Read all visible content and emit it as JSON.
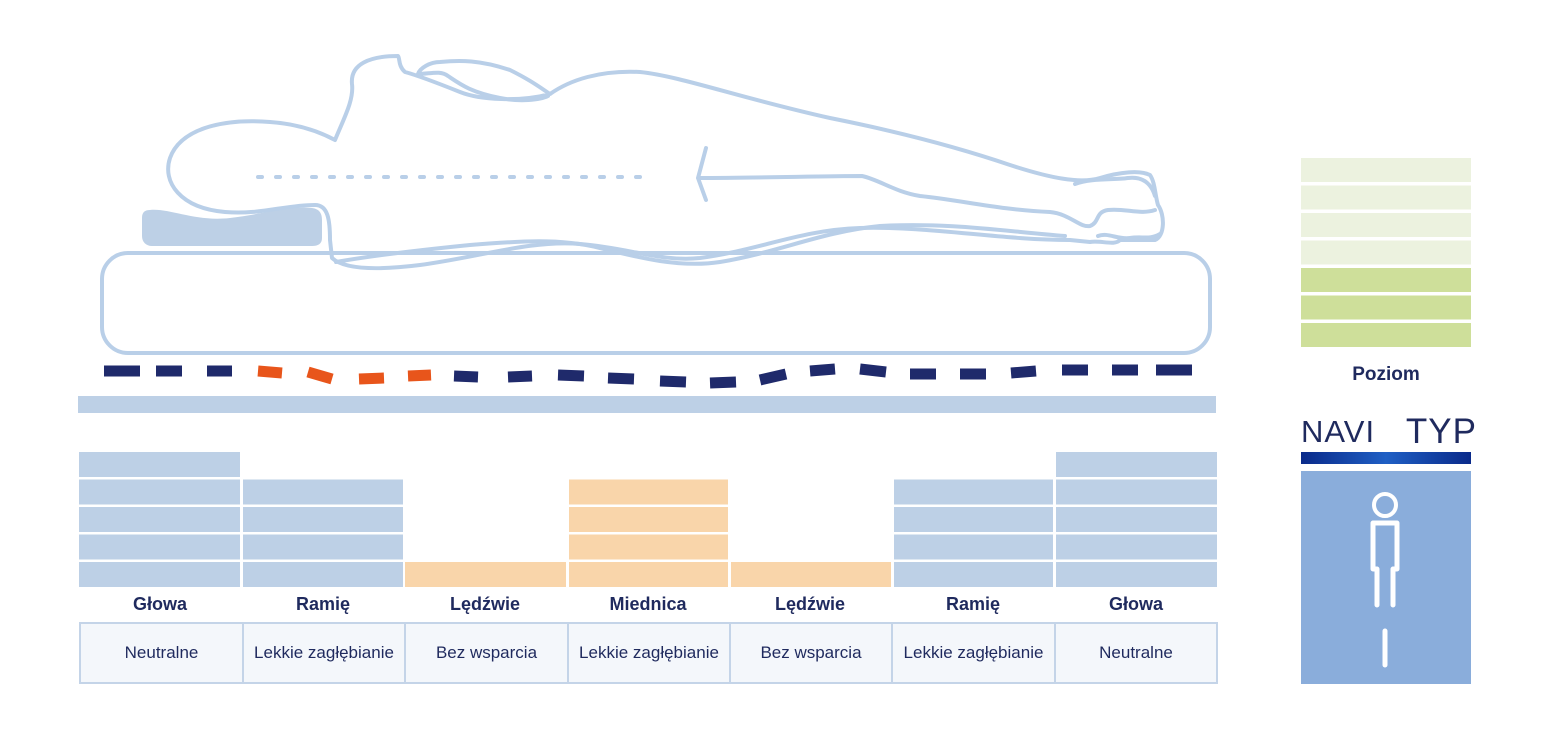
{
  "zones": [
    {
      "name": "Głowa",
      "support": "Neutralne",
      "height_level": 5,
      "tone": "blue"
    },
    {
      "name": "Ramię",
      "support": "Lekkie zagłębianie",
      "height_level": 4,
      "tone": "blue"
    },
    {
      "name": "Lędźwie",
      "support": "Bez wsparcia",
      "height_level": 1,
      "tone": "orange"
    },
    {
      "name": "Miednica",
      "support": "Lekkie zagłębianie",
      "height_level": 4,
      "tone": "orange"
    },
    {
      "name": "Lędźwie",
      "support": "Bez wsparcia",
      "height_level": 1,
      "tone": "orange"
    },
    {
      "name": "Ramię",
      "support": "Lekkie zagłębianie",
      "height_level": 4,
      "tone": "blue"
    },
    {
      "name": "Głowa",
      "support": "Neutralne",
      "height_level": 5,
      "tone": "blue"
    }
  ],
  "level": {
    "label": "Poziom",
    "total_segments": 7,
    "filled_segments": 3
  },
  "navi": {
    "word1": "NAVI",
    "word2": "TYP"
  },
  "colors": {
    "outline": "#b9cfe8",
    "navy": "#1f2a6b",
    "accent_orange": "#e8551b",
    "block_blue": "#bdd0e6",
    "block_orange": "#f9d5aa",
    "level_light": "#ecf2df",
    "level_dark": "#cedf9a",
    "navi_panel": "#8aaddb",
    "text": "#1f2a5e"
  },
  "icons": {
    "figure": "standing-person-icon",
    "pillow": "pillow-icon"
  }
}
